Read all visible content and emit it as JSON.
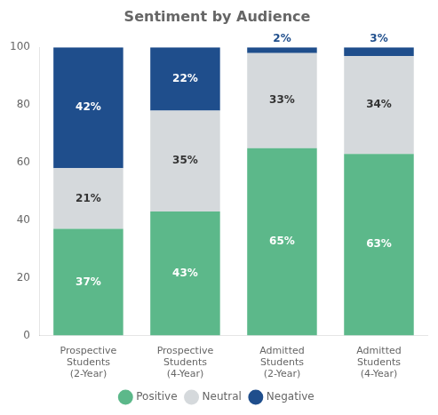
{
  "chart_data": {
    "type": "bar",
    "title": "Sentiment by Audience",
    "categories": [
      "Prospective\nStudents\n(2-Year)",
      "Prospective\nStudents\n(4-Year)",
      "Admitted\nStudents\n(2-Year)",
      "Admitted\nStudents\n(4-Year)"
    ],
    "series": [
      {
        "name": "Positive",
        "color": "#5cb88a",
        "values": [
          37,
          43,
          65,
          63
        ],
        "value_labels": [
          "37%",
          "43%",
          "65%",
          "63%"
        ]
      },
      {
        "name": "Neutral",
        "color": "#d5d9dc",
        "values": [
          21,
          35,
          33,
          34
        ],
        "value_labels": [
          "21%",
          "35%",
          "33%",
          "34%"
        ]
      },
      {
        "name": "Negative",
        "color": "#1f4e8c",
        "values": [
          42,
          22,
          2,
          3
        ],
        "value_labels": [
          "42%",
          "22%",
          "2%",
          "3%"
        ]
      }
    ],
    "ylim": [
      0,
      100
    ],
    "yticks": [
      0,
      20,
      40,
      60,
      80,
      100
    ],
    "stacked": true,
    "grid": false,
    "legend": "bottom",
    "data_labels": true
  }
}
